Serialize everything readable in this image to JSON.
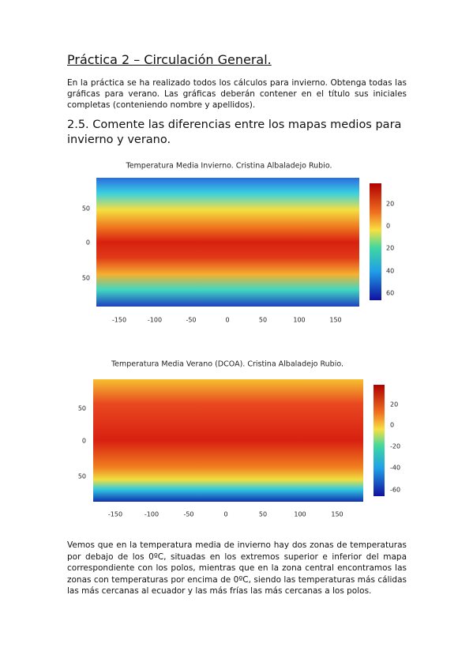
{
  "header": {
    "title": "Práctica 2 – Circulación General."
  },
  "intro": "En la práctica se ha realizado todos los cálculos para invierno. Obtenga todas las gráficas para verano. Las gráficas deberán contener en el título sus iniciales completas (conteniendo nombre y apellidos).",
  "section": {
    "title": "2.5. Comente las diferencias entre los mapas medios para invierno y verano."
  },
  "figures": [
    {
      "title": "Temperatura Media Invierno. Cristina Albaladejo Rubio.",
      "xticks": [
        "-150",
        "-100",
        "-50",
        "0",
        "50",
        "100",
        "150"
      ],
      "yticks": [
        "50",
        "0",
        "50"
      ],
      "colorbar": [
        "20",
        "0",
        "20",
        "40",
        "60"
      ]
    },
    {
      "title": "Temperatura Media Verano (DCOA). Cristina Albaladejo Rubio.",
      "xticks": [
        "-150",
        "-100",
        "-50",
        "0",
        "50",
        "100",
        "150"
      ],
      "yticks": [
        "50",
        "0",
        "50"
      ],
      "colorbar": [
        "20",
        "0",
        "-20",
        "-40",
        "-60"
      ]
    }
  ],
  "conclusion": "Vemos que en la temperatura media de invierno hay dos zonas de temperaturas por debajo de los 0ºC, situadas en los extremos superior e inferior del mapa correspondiente con los polos, mientras que en la zona central encontramos las zonas con temperaturas por encima de 0ºC, siendo las temperaturas más cálidas las más cercanas al ecuador y las más frías las más cercanas a los polos."
}
